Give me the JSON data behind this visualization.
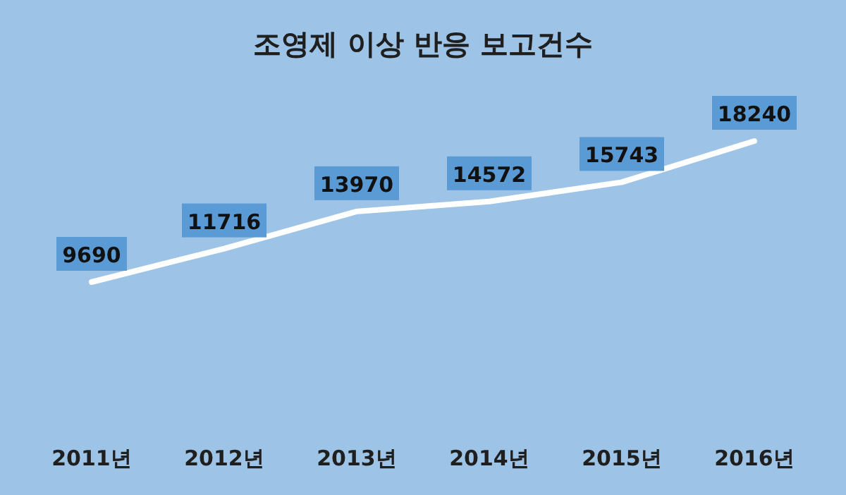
{
  "chart_data": {
    "type": "line",
    "title": "조영제 이상 반응 보고건수",
    "categories": [
      "2011년",
      "2012년",
      "2013년",
      "2014년",
      "2015년",
      "2016년"
    ],
    "series": [
      {
        "color": "#ffffff",
        "values": [
          9690,
          11716,
          13970,
          14572,
          15743,
          18240
        ]
      }
    ],
    "data_labels": true,
    "line_style": "solid"
  }
}
